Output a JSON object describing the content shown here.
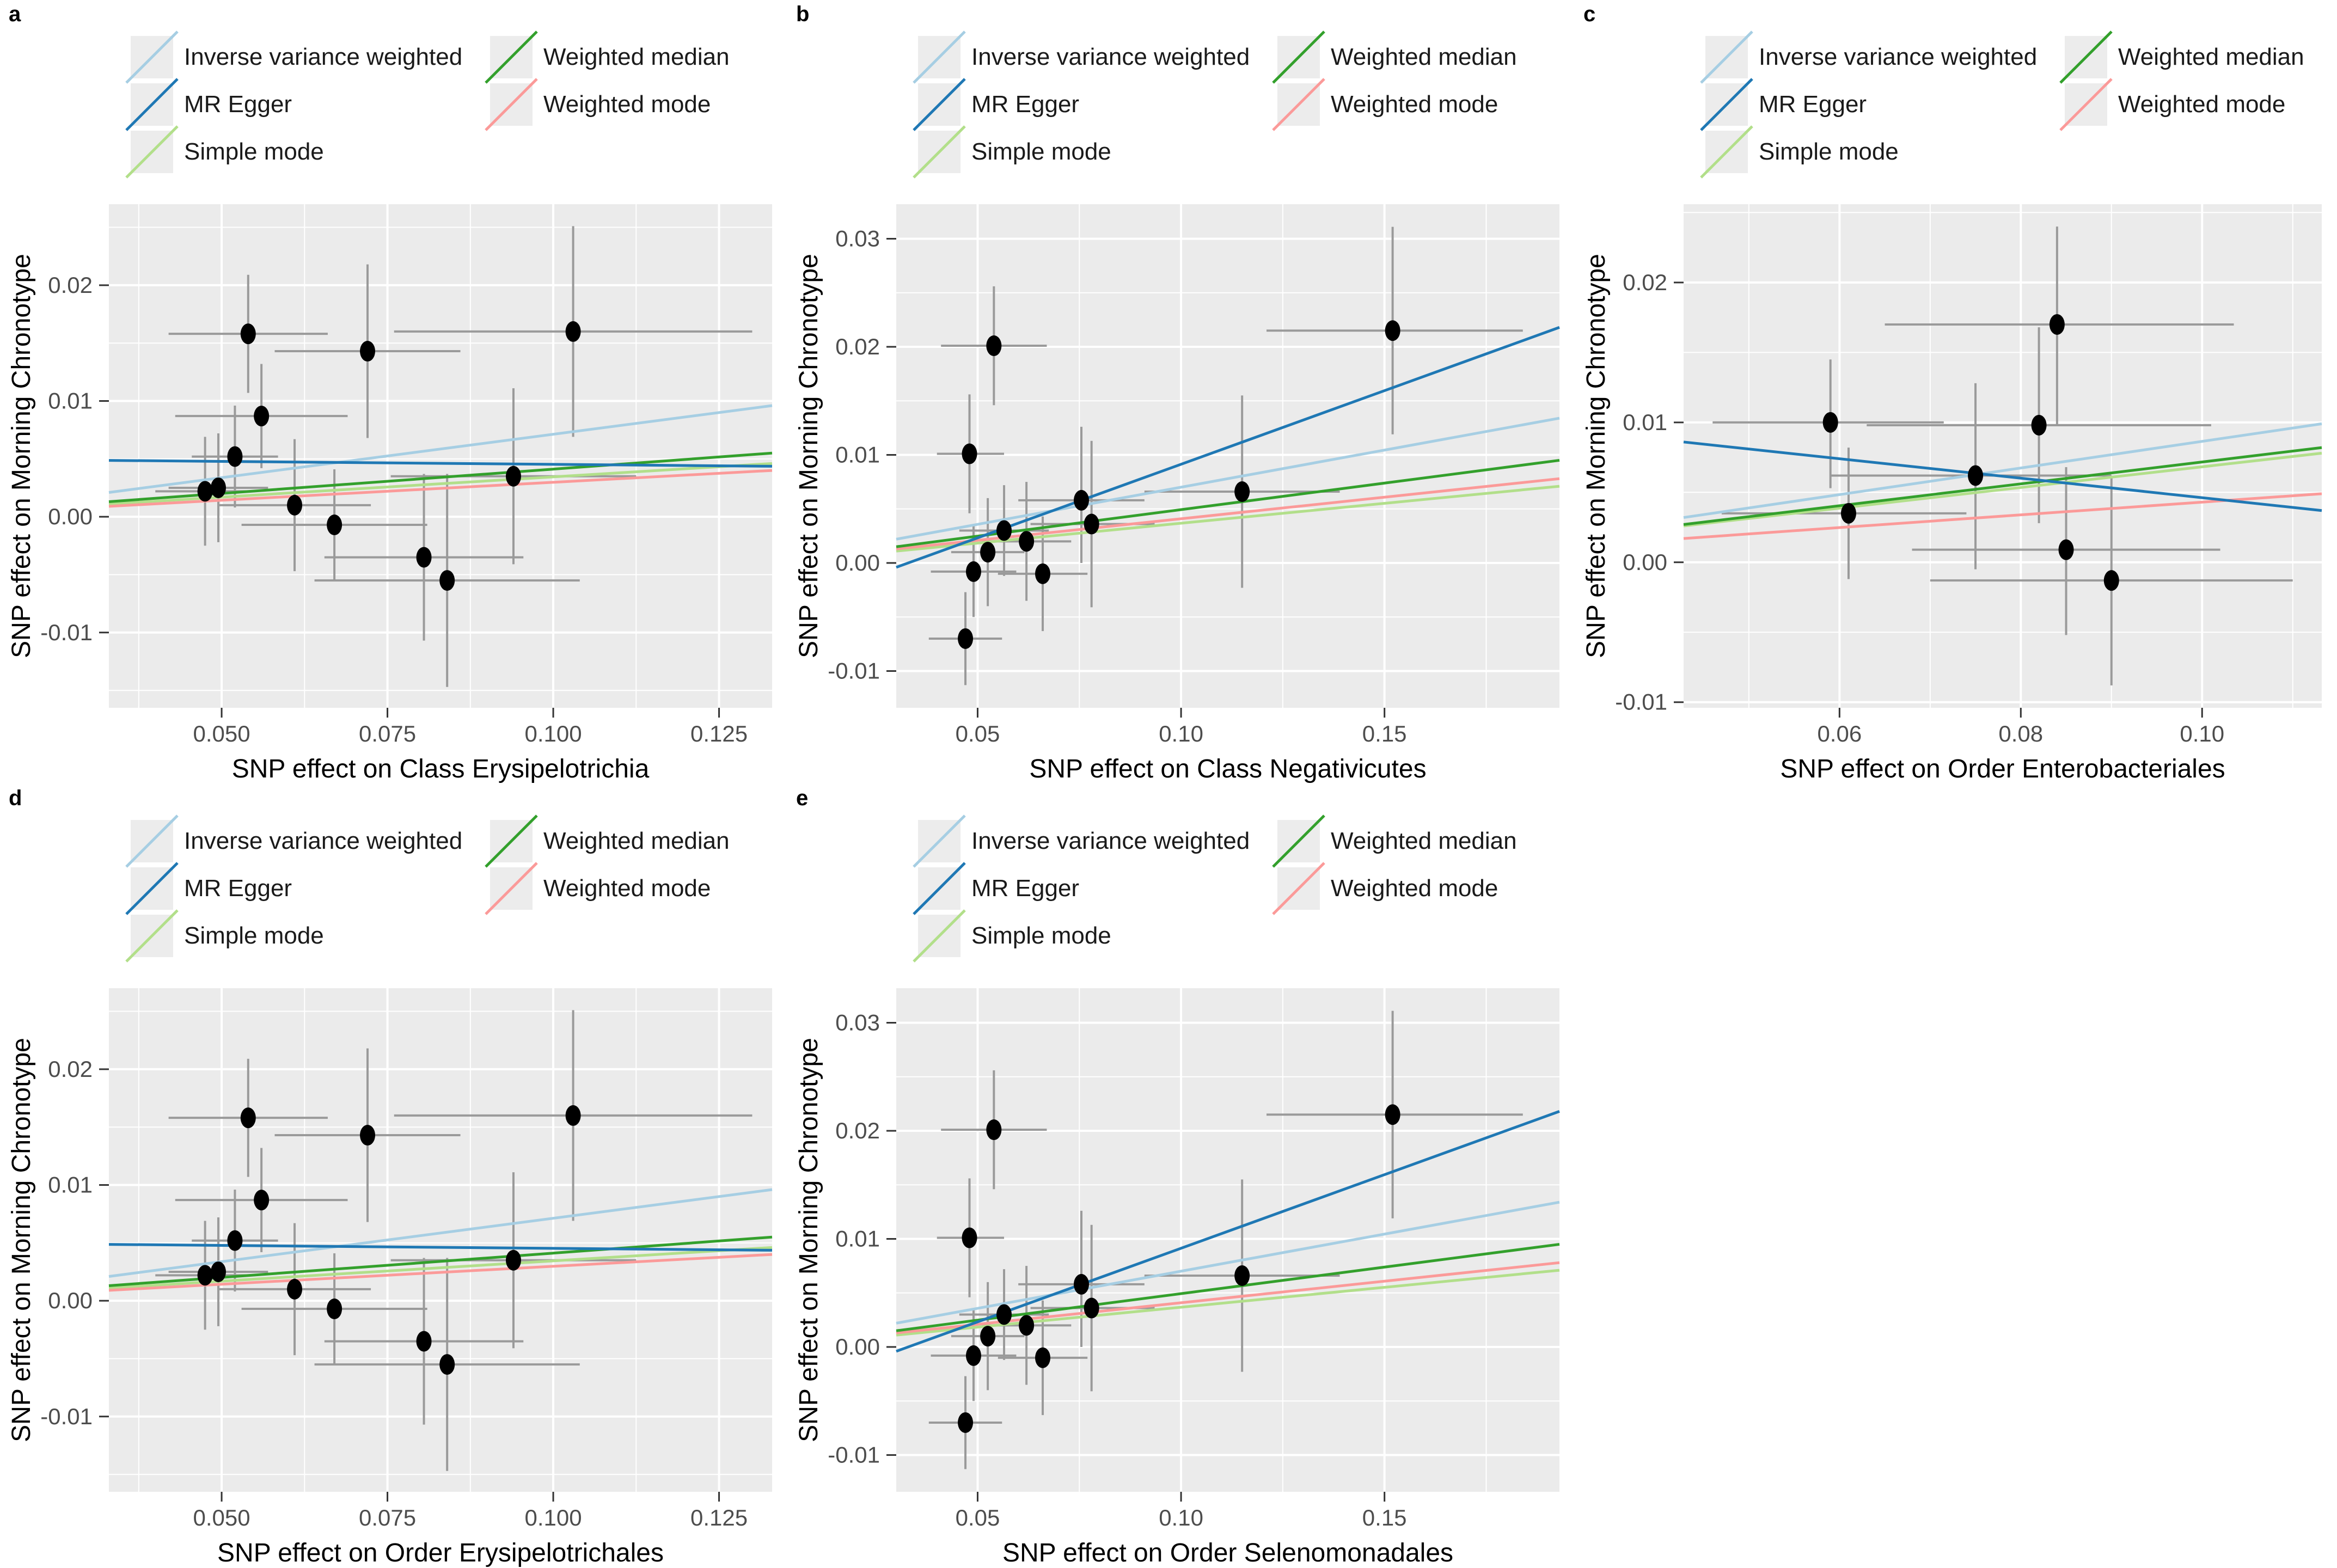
{
  "style": {
    "panel_bg": "#EBEBEB",
    "grid_color": "#FFFFFF",
    "errorbar_color": "#9A9A9A",
    "point_color": "#000000",
    "tick_color": "#333333",
    "tick_label_color": "#4D4D4D",
    "axis_title_color": "#000000",
    "legend_key_bg": "#ECECEC",
    "legend_text_color": "#1A1A1A",
    "page_bg": "#FFFFFF"
  },
  "legend": {
    "items": [
      {
        "label": "Inverse variance weighted",
        "color": "#A6CEE3"
      },
      {
        "label": "MR Egger",
        "color": "#1F78B4"
      },
      {
        "label": "Simple mode",
        "color": "#B2DF8A"
      },
      {
        "label": "Weighted median",
        "color": "#33A02C"
      },
      {
        "label": "Weighted mode",
        "color": "#FB9A99"
      }
    ],
    "columns": [
      [
        0,
        1,
        2
      ],
      [
        3,
        4
      ]
    ]
  },
  "chart_data": [
    {
      "id": "a",
      "type": "scatter",
      "grid_pos": {
        "row": 0,
        "col": 0
      },
      "xlabel": "SNP effect on Class Erysipelotrichia",
      "ylabel": "SNP effect on Morning Chronotype",
      "xlim": [
        0.033,
        0.133
      ],
      "ylim": [
        -0.0165,
        0.027
      ],
      "xticks": {
        "values": [
          0.05,
          0.075,
          0.1,
          0.125
        ],
        "labels": [
          "0.050",
          "0.075",
          "0.100",
          "0.125"
        ]
      },
      "yticks": {
        "values": [
          -0.01,
          0,
          0.01,
          0.02
        ],
        "labels": [
          "-0.01",
          "0.00",
          "0.01",
          "0.02"
        ]
      },
      "xminor": [
        0.0375,
        0.0625,
        0.0875,
        0.1125
      ],
      "yminor": [
        -0.015,
        -0.005,
        0.005,
        0.015,
        0.025
      ],
      "points": [
        {
          "x": 0.0475,
          "y": 0.0022,
          "xlo": 0.04,
          "xhi": 0.055,
          "ylo": -0.0025,
          "yhi": 0.0069
        },
        {
          "x": 0.0495,
          "y": 0.0025,
          "xlo": 0.042,
          "xhi": 0.057,
          "ylo": -0.0022,
          "yhi": 0.0072
        },
        {
          "x": 0.052,
          "y": 0.0052,
          "xlo": 0.0455,
          "xhi": 0.0585,
          "ylo": 0.0008,
          "yhi": 0.0096
        },
        {
          "x": 0.054,
          "y": 0.0158,
          "xlo": 0.042,
          "xhi": 0.066,
          "ylo": 0.0107,
          "yhi": 0.0209
        },
        {
          "x": 0.056,
          "y": 0.0087,
          "xlo": 0.043,
          "xhi": 0.069,
          "ylo": 0.0042,
          "yhi": 0.0132
        },
        {
          "x": 0.061,
          "y": 0.001,
          "xlo": 0.0495,
          "xhi": 0.0725,
          "ylo": -0.0047,
          "yhi": 0.0067
        },
        {
          "x": 0.067,
          "y": -0.0007,
          "xlo": 0.053,
          "xhi": 0.081,
          "ylo": -0.0055,
          "yhi": 0.0041
        },
        {
          "x": 0.072,
          "y": 0.0143,
          "xlo": 0.058,
          "xhi": 0.086,
          "ylo": 0.0068,
          "yhi": 0.0218
        },
        {
          "x": 0.0805,
          "y": -0.0035,
          "xlo": 0.0655,
          "xhi": 0.0955,
          "ylo": -0.0107,
          "yhi": 0.0037
        },
        {
          "x": 0.084,
          "y": -0.0055,
          "xlo": 0.064,
          "xhi": 0.104,
          "ylo": -0.0147,
          "yhi": 0.0037
        },
        {
          "x": 0.094,
          "y": 0.0035,
          "xlo": 0.0755,
          "xhi": 0.1125,
          "ylo": -0.0041,
          "yhi": 0.0111
        },
        {
          "x": 0.103,
          "y": 0.016,
          "xlo": 0.076,
          "xhi": 0.13,
          "ylo": 0.0069,
          "yhi": 0.0251
        }
      ],
      "lines": [
        {
          "method": "Inverse variance weighted",
          "y_at_xmin": 0.0021,
          "y_at_xmax": 0.0096
        },
        {
          "method": "Simple mode",
          "y_at_xmin": 0.0011,
          "y_at_xmax": 0.0046
        },
        {
          "method": "Weighted mode",
          "y_at_xmin": 0.0009,
          "y_at_xmax": 0.004
        },
        {
          "method": "Weighted median",
          "y_at_xmin": 0.0013,
          "y_at_xmax": 0.0055
        },
        {
          "method": "MR Egger",
          "y_at_xmin": 0.00487,
          "y_at_xmax": 0.00436
        }
      ]
    },
    {
      "id": "b",
      "type": "scatter",
      "grid_pos": {
        "row": 0,
        "col": 1
      },
      "xlabel": "SNP effect on Class Negativicutes",
      "ylabel": "SNP effect on Morning Chronotype",
      "xlim": [
        0.03,
        0.193
      ],
      "ylim": [
        -0.0134,
        0.0332
      ],
      "xticks": {
        "values": [
          0.05,
          0.1,
          0.15
        ],
        "labels": [
          "0.05",
          "0.10",
          "0.15"
        ]
      },
      "yticks": {
        "values": [
          -0.01,
          0,
          0.01,
          0.02,
          0.03
        ],
        "labels": [
          "-0.01",
          "0.00",
          "0.01",
          "0.02",
          "0.03"
        ]
      },
      "xminor": [
        0.075,
        0.125,
        0.175
      ],
      "yminor": [
        -0.005,
        0.005,
        0.015,
        0.025
      ],
      "points": [
        {
          "x": 0.054,
          "y": 0.0201,
          "xlo": 0.041,
          "xhi": 0.067,
          "ylo": 0.0146,
          "yhi": 0.0256
        },
        {
          "x": 0.152,
          "y": 0.0215,
          "xlo": 0.121,
          "xhi": 0.184,
          "ylo": 0.0119,
          "yhi": 0.0311
        },
        {
          "x": 0.048,
          "y": 0.0101,
          "xlo": 0.04,
          "xhi": 0.0565,
          "ylo": 0.0046,
          "yhi": 0.0156
        },
        {
          "x": 0.115,
          "y": 0.0066,
          "xlo": 0.091,
          "xhi": 0.139,
          "ylo": -0.0023,
          "yhi": 0.0155
        },
        {
          "x": 0.0755,
          "y": 0.0058,
          "xlo": 0.06,
          "xhi": 0.091,
          "ylo": 0.0,
          "yhi": 0.0126
        },
        {
          "x": 0.078,
          "y": 0.0036,
          "xlo": 0.063,
          "xhi": 0.0935,
          "ylo": -0.0041,
          "yhi": 0.0113
        },
        {
          "x": 0.0565,
          "y": 0.003,
          "xlo": 0.0455,
          "xhi": 0.0675,
          "ylo": -0.0012,
          "yhi": 0.0072
        },
        {
          "x": 0.062,
          "y": 0.002,
          "xlo": 0.051,
          "xhi": 0.073,
          "ylo": -0.0035,
          "yhi": 0.0075
        },
        {
          "x": 0.0525,
          "y": 0.001,
          "xlo": 0.0435,
          "xhi": 0.0615,
          "ylo": -0.004,
          "yhi": 0.006
        },
        {
          "x": 0.049,
          "y": -0.0008,
          "xlo": 0.0385,
          "xhi": 0.0595,
          "ylo": -0.005,
          "yhi": 0.0035
        },
        {
          "x": 0.066,
          "y": -0.001,
          "xlo": 0.055,
          "xhi": 0.077,
          "ylo": -0.0063,
          "yhi": 0.0043
        },
        {
          "x": 0.047,
          "y": -0.007,
          "xlo": 0.038,
          "xhi": 0.056,
          "ylo": -0.0113,
          "yhi": -0.0027
        }
      ],
      "lines": [
        {
          "method": "Inverse variance weighted",
          "y_at_xmin": 0.0022,
          "y_at_xmax": 0.0134
        },
        {
          "method": "Simple mode",
          "y_at_xmin": 0.0011,
          "y_at_xmax": 0.0071
        },
        {
          "method": "Weighted mode",
          "y_at_xmin": 0.0013,
          "y_at_xmax": 0.0078
        },
        {
          "method": "Weighted median",
          "y_at_xmin": 0.0015,
          "y_at_xmax": 0.0095
        },
        {
          "method": "MR Egger",
          "y_at_xmin": -0.0004,
          "y_at_xmax": 0.0218
        }
      ]
    },
    {
      "id": "c",
      "type": "scatter",
      "grid_pos": {
        "row": 0,
        "col": 2
      },
      "xlabel": "SNP effect on Order Enterobacteriales",
      "ylabel": "SNP effect on Morning Chronotype",
      "xlim": [
        0.0428,
        0.1132
      ],
      "ylim": [
        -0.0104,
        0.0256
      ],
      "xticks": {
        "values": [
          0.06,
          0.08,
          0.1
        ],
        "labels": [
          "0.06",
          "0.08",
          "0.10"
        ]
      },
      "yticks": {
        "values": [
          -0.01,
          0,
          0.01,
          0.02
        ],
        "labels": [
          "-0.01",
          "0.00",
          "0.01",
          "0.02"
        ]
      },
      "xminor": [
        0.05,
        0.07,
        0.09,
        0.11
      ],
      "yminor": [
        -0.005,
        0.005,
        0.015,
        0.025
      ],
      "points": [
        {
          "x": 0.059,
          "y": 0.01,
          "xlo": 0.046,
          "xhi": 0.0715,
          "ylo": 0.0053,
          "yhi": 0.0145
        },
        {
          "x": 0.084,
          "y": 0.017,
          "xlo": 0.065,
          "xhi": 0.1035,
          "ylo": 0.0098,
          "yhi": 0.024
        },
        {
          "x": 0.082,
          "y": 0.0098,
          "xlo": 0.063,
          "xhi": 0.101,
          "ylo": 0.0028,
          "yhi": 0.0168
        },
        {
          "x": 0.075,
          "y": 0.0062,
          "xlo": 0.059,
          "xhi": 0.09,
          "ylo": -0.0005,
          "yhi": 0.0128
        },
        {
          "x": 0.061,
          "y": 0.0035,
          "xlo": 0.047,
          "xhi": 0.074,
          "ylo": -0.0012,
          "yhi": 0.0082
        },
        {
          "x": 0.085,
          "y": 0.0009,
          "xlo": 0.068,
          "xhi": 0.102,
          "ylo": -0.0052,
          "yhi": 0.0068
        },
        {
          "x": 0.09,
          "y": -0.0013,
          "xlo": 0.07,
          "xhi": 0.11,
          "ylo": -0.0088,
          "yhi": 0.0062
        }
      ],
      "lines": [
        {
          "method": "Inverse variance weighted",
          "y_at_xmin": 0.0032,
          "y_at_xmax": 0.0099
        },
        {
          "method": "Simple mode",
          "y_at_xmin": 0.0026,
          "y_at_xmax": 0.0078
        },
        {
          "method": "Weighted mode",
          "y_at_xmin": 0.0017,
          "y_at_xmax": 0.0049
        },
        {
          "method": "Weighted median",
          "y_at_xmin": 0.0027,
          "y_at_xmax": 0.0082
        },
        {
          "method": "MR Egger",
          "y_at_xmin": 0.0086,
          "y_at_xmax": 0.0037
        }
      ]
    },
    {
      "id": "d",
      "type": "scatter",
      "grid_pos": {
        "row": 1,
        "col": 0
      },
      "xlabel": "SNP effect on Order Erysipelotrichales",
      "ylabel": "SNP effect on Morning Chronotype",
      "xlim": [
        0.033,
        0.133
      ],
      "ylim": [
        -0.0165,
        0.027
      ],
      "xticks": {
        "values": [
          0.05,
          0.075,
          0.1,
          0.125
        ],
        "labels": [
          "0.050",
          "0.075",
          "0.100",
          "0.125"
        ]
      },
      "yticks": {
        "values": [
          -0.01,
          0,
          0.01,
          0.02
        ],
        "labels": [
          "-0.01",
          "0.00",
          "0.01",
          "0.02"
        ]
      },
      "xminor": [
        0.0375,
        0.0625,
        0.0875,
        0.1125
      ],
      "yminor": [
        -0.015,
        -0.005,
        0.005,
        0.015,
        0.025
      ],
      "points": [
        {
          "x": 0.0475,
          "y": 0.0022,
          "xlo": 0.04,
          "xhi": 0.055,
          "ylo": -0.0025,
          "yhi": 0.0069
        },
        {
          "x": 0.0495,
          "y": 0.0025,
          "xlo": 0.042,
          "xhi": 0.057,
          "ylo": -0.0022,
          "yhi": 0.0072
        },
        {
          "x": 0.052,
          "y": 0.0052,
          "xlo": 0.0455,
          "xhi": 0.0585,
          "ylo": 0.0008,
          "yhi": 0.0096
        },
        {
          "x": 0.054,
          "y": 0.0158,
          "xlo": 0.042,
          "xhi": 0.066,
          "ylo": 0.0107,
          "yhi": 0.0209
        },
        {
          "x": 0.056,
          "y": 0.0087,
          "xlo": 0.043,
          "xhi": 0.069,
          "ylo": 0.0042,
          "yhi": 0.0132
        },
        {
          "x": 0.061,
          "y": 0.001,
          "xlo": 0.0495,
          "xhi": 0.0725,
          "ylo": -0.0047,
          "yhi": 0.0067
        },
        {
          "x": 0.067,
          "y": -0.0007,
          "xlo": 0.053,
          "xhi": 0.081,
          "ylo": -0.0055,
          "yhi": 0.0041
        },
        {
          "x": 0.072,
          "y": 0.0143,
          "xlo": 0.058,
          "xhi": 0.086,
          "ylo": 0.0068,
          "yhi": 0.0218
        },
        {
          "x": 0.0805,
          "y": -0.0035,
          "xlo": 0.0655,
          "xhi": 0.0955,
          "ylo": -0.0107,
          "yhi": 0.0037
        },
        {
          "x": 0.084,
          "y": -0.0055,
          "xlo": 0.064,
          "xhi": 0.104,
          "ylo": -0.0147,
          "yhi": 0.0037
        },
        {
          "x": 0.094,
          "y": 0.0035,
          "xlo": 0.0755,
          "xhi": 0.1125,
          "ylo": -0.0041,
          "yhi": 0.0111
        },
        {
          "x": 0.103,
          "y": 0.016,
          "xlo": 0.076,
          "xhi": 0.13,
          "ylo": 0.0069,
          "yhi": 0.0251
        }
      ],
      "lines": [
        {
          "method": "Inverse variance weighted",
          "y_at_xmin": 0.0021,
          "y_at_xmax": 0.0096
        },
        {
          "method": "Simple mode",
          "y_at_xmin": 0.0011,
          "y_at_xmax": 0.0046
        },
        {
          "method": "Weighted mode",
          "y_at_xmin": 0.0009,
          "y_at_xmax": 0.004
        },
        {
          "method": "Weighted median",
          "y_at_xmin": 0.0013,
          "y_at_xmax": 0.0055
        },
        {
          "method": "MR Egger",
          "y_at_xmin": 0.00487,
          "y_at_xmax": 0.00436
        }
      ]
    },
    {
      "id": "e",
      "type": "scatter",
      "grid_pos": {
        "row": 1,
        "col": 1
      },
      "xlabel": "SNP effect on Order Selenomonadales",
      "ylabel": "SNP effect on Morning Chronotype",
      "xlim": [
        0.03,
        0.193
      ],
      "ylim": [
        -0.0134,
        0.0332
      ],
      "xticks": {
        "values": [
          0.05,
          0.1,
          0.15
        ],
        "labels": [
          "0.05",
          "0.10",
          "0.15"
        ]
      },
      "yticks": {
        "values": [
          -0.01,
          0,
          0.01,
          0.02,
          0.03
        ],
        "labels": [
          "-0.01",
          "0.00",
          "0.01",
          "0.02",
          "0.03"
        ]
      },
      "xminor": [
        0.075,
        0.125,
        0.175
      ],
      "yminor": [
        -0.005,
        0.005,
        0.015,
        0.025
      ],
      "points": [
        {
          "x": 0.054,
          "y": 0.0201,
          "xlo": 0.041,
          "xhi": 0.067,
          "ylo": 0.0146,
          "yhi": 0.0256
        },
        {
          "x": 0.152,
          "y": 0.0215,
          "xlo": 0.121,
          "xhi": 0.184,
          "ylo": 0.0119,
          "yhi": 0.0311
        },
        {
          "x": 0.048,
          "y": 0.0101,
          "xlo": 0.04,
          "xhi": 0.0565,
          "ylo": 0.0046,
          "yhi": 0.0156
        },
        {
          "x": 0.115,
          "y": 0.0066,
          "xlo": 0.091,
          "xhi": 0.139,
          "ylo": -0.0023,
          "yhi": 0.0155
        },
        {
          "x": 0.0755,
          "y": 0.0058,
          "xlo": 0.06,
          "xhi": 0.091,
          "ylo": 0.0,
          "yhi": 0.0126
        },
        {
          "x": 0.078,
          "y": 0.0036,
          "xlo": 0.063,
          "xhi": 0.0935,
          "ylo": -0.0041,
          "yhi": 0.0113
        },
        {
          "x": 0.0565,
          "y": 0.003,
          "xlo": 0.0455,
          "xhi": 0.0675,
          "ylo": -0.0012,
          "yhi": 0.0072
        },
        {
          "x": 0.062,
          "y": 0.002,
          "xlo": 0.051,
          "xhi": 0.073,
          "ylo": -0.0035,
          "yhi": 0.0075
        },
        {
          "x": 0.0525,
          "y": 0.001,
          "xlo": 0.0435,
          "xhi": 0.0615,
          "ylo": -0.004,
          "yhi": 0.006
        },
        {
          "x": 0.049,
          "y": -0.0008,
          "xlo": 0.0385,
          "xhi": 0.0595,
          "ylo": -0.005,
          "yhi": 0.0035
        },
        {
          "x": 0.066,
          "y": -0.001,
          "xlo": 0.055,
          "xhi": 0.077,
          "ylo": -0.0063,
          "yhi": 0.0043
        },
        {
          "x": 0.047,
          "y": -0.007,
          "xlo": 0.038,
          "xhi": 0.056,
          "ylo": -0.0113,
          "yhi": -0.0027
        }
      ],
      "lines": [
        {
          "method": "Inverse variance weighted",
          "y_at_xmin": 0.0022,
          "y_at_xmax": 0.0134
        },
        {
          "method": "Simple mode",
          "y_at_xmin": 0.0011,
          "y_at_xmax": 0.0071
        },
        {
          "method": "Weighted mode",
          "y_at_xmin": 0.0013,
          "y_at_xmax": 0.0078
        },
        {
          "method": "Weighted median",
          "y_at_xmin": 0.0015,
          "y_at_xmax": 0.0095
        },
        {
          "method": "MR Egger",
          "y_at_xmin": -0.0004,
          "y_at_xmax": 0.0218
        }
      ]
    }
  ]
}
